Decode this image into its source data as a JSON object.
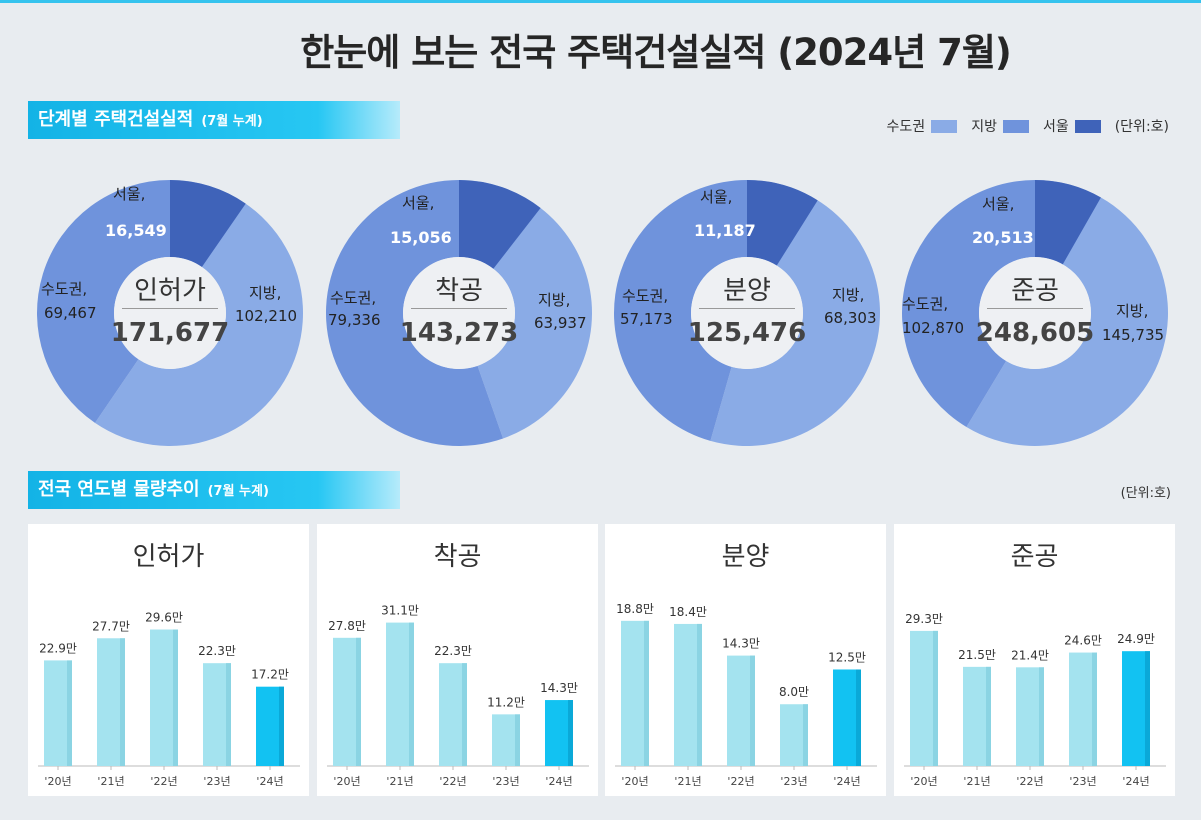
{
  "title": "한눈에 보는 전국 주택건설실적 (2024년 7월)",
  "section1": {
    "label": "단계별 주택건설실적",
    "sub": "(7월 누계)"
  },
  "section2": {
    "label": "전국 연도별 물량추이",
    "sub": "(7월 누계)"
  },
  "legend": {
    "items": [
      {
        "label": "수도권",
        "color": "#8aabe6"
      },
      {
        "label": "지방",
        "color": "#6f93dc"
      },
      {
        "label": "서울",
        "color": "#3f63b9"
      }
    ],
    "unit": "(단위:호)"
  },
  "unit2": "(단위:호)",
  "donuts": [
    {
      "name": "인허가",
      "total": "171,677",
      "seoul_label": "서울,",
      "seoul_value": "16,549",
      "metro_label": "수도권,",
      "metro_value": "69,467",
      "local_label": "지방,",
      "local_value": "102,210"
    },
    {
      "name": "착공",
      "total": "143,273",
      "seoul_label": "서울,",
      "seoul_value": "15,056",
      "metro_label": "수도권,",
      "metro_value": "79,336",
      "local_label": "지방,",
      "local_value": "63,937"
    },
    {
      "name": "분양",
      "total": "125,476",
      "seoul_label": "서울,",
      "seoul_value": "11,187",
      "metro_label": "수도권,",
      "metro_value": "57,173",
      "local_label": "지방,",
      "local_value": "68,303"
    },
    {
      "name": "준공",
      "total": "248,605",
      "seoul_label": "서울,",
      "seoul_value": "20,513",
      "metro_label": "수도권,",
      "metro_value": "102,870",
      "local_label": "지방,",
      "local_value": "145,735"
    }
  ],
  "chart_data": [
    {
      "type": "pie",
      "title": "인허가",
      "total": 171677,
      "slices": [
        {
          "label": "지방",
          "value": 102210
        },
        {
          "label": "수도권",
          "value": 69467
        },
        {
          "label": "서울",
          "value": 16549
        }
      ]
    },
    {
      "type": "pie",
      "title": "착공",
      "total": 143273,
      "slices": [
        {
          "label": "지방",
          "value": 63937
        },
        {
          "label": "수도권",
          "value": 79336
        },
        {
          "label": "서울",
          "value": 15056
        }
      ]
    },
    {
      "type": "pie",
      "title": "분양",
      "total": 125476,
      "slices": [
        {
          "label": "지방",
          "value": 68303
        },
        {
          "label": "수도권",
          "value": 57173
        },
        {
          "label": "서울",
          "value": 11187
        }
      ]
    },
    {
      "type": "pie",
      "title": "준공",
      "total": 248605,
      "slices": [
        {
          "label": "지방",
          "value": 145735
        },
        {
          "label": "수도권",
          "value": 102870
        },
        {
          "label": "서울",
          "value": 20513
        }
      ]
    },
    {
      "type": "bar",
      "title": "인허가",
      "categories": [
        "'20년",
        "'21년",
        "'22년",
        "'23년",
        "'24년"
      ],
      "values": [
        22.9,
        27.7,
        29.6,
        22.3,
        17.2
      ],
      "labels": [
        "22.9만",
        "27.7만",
        "29.6만",
        "22.3만",
        "17.2만"
      ],
      "ylim": [
        0,
        36
      ]
    },
    {
      "type": "bar",
      "title": "착공",
      "categories": [
        "'20년",
        "'21년",
        "'22년",
        "'23년",
        "'24년"
      ],
      "values": [
        27.8,
        31.1,
        22.3,
        11.2,
        14.3
      ],
      "labels": [
        "27.8만",
        "31.1만",
        "22.3만",
        "11.2만",
        "14.3만"
      ],
      "ylim": [
        0,
        36
      ]
    },
    {
      "type": "bar",
      "title": "분양",
      "categories": [
        "'20년",
        "'21년",
        "'22년",
        "'23년",
        "'24년"
      ],
      "values": [
        18.8,
        18.4,
        14.3,
        8.0,
        12.5
      ],
      "labels": [
        "18.8만",
        "18.4만",
        "14.3만",
        "8.0만",
        "12.5만"
      ],
      "ylim": [
        0,
        21.5
      ]
    },
    {
      "type": "bar",
      "title": "준공",
      "categories": [
        "'20년",
        "'21년",
        "'22년",
        "'23년",
        "'24년"
      ],
      "values": [
        29.3,
        21.5,
        21.4,
        24.6,
        24.9
      ],
      "labels": [
        "29.3만",
        "21.5만",
        "21.4만",
        "24.6만",
        "24.9만"
      ],
      "ylim": [
        0,
        36
      ]
    }
  ]
}
